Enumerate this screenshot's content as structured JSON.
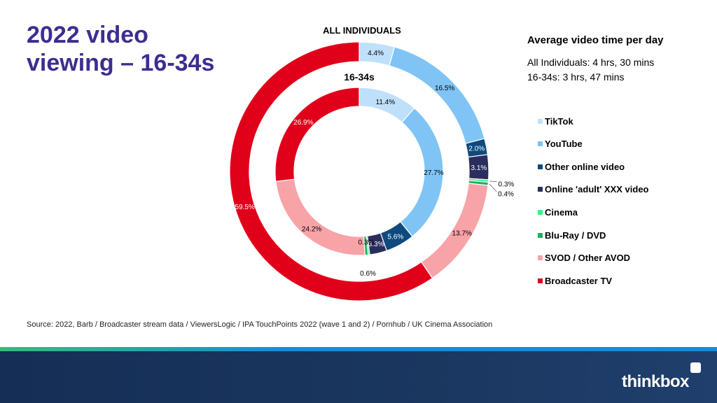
{
  "page": {
    "title": "2022 video viewing – 16-34s",
    "source": "Source: 2022, Barb / Broadcaster stream data / ViewersLogic / IPA TouchPoints 2022 (wave 1 and 2) / Pornhub / UK Cinema Association",
    "brand": "thinkbox"
  },
  "summary": {
    "title": "Average video time per day",
    "all_individuals": "All Individuals: 4 hrs, 30 mins",
    "age_16_34": "16-34s: 3 hrs, 47 mins"
  },
  "colors": {
    "title": "#3c2e91",
    "band_blue": "#1a8ad4",
    "band_green": "#3cb878",
    "footer": "#1a3760"
  },
  "chart_data": {
    "type": "donut",
    "rings": [
      {
        "name": "ALL INDIVIDUALS",
        "values": [
          4.4,
          16.5,
          2.0,
          3.1,
          0.3,
          0.4,
          13.7,
          59.5
        ],
        "labels": [
          "4.4%",
          "16.5%",
          "2.0%",
          "3.1%",
          "0.3%",
          "0.4%",
          "13.7%",
          "59.5%"
        ]
      },
      {
        "name": "16-34s",
        "values": [
          11.4,
          27.7,
          5.6,
          3.3,
          0.3,
          0.6,
          24.2,
          26.9
        ],
        "labels": [
          "11.4%",
          "27.7%",
          "5.6%",
          "3.3%",
          "0.3%",
          "0.6%",
          "24.2%",
          "26.9%"
        ]
      }
    ],
    "categories": [
      "TikTok",
      "YouTube",
      "Other online video",
      "Online 'adult' XXX video",
      "Cinema",
      "Blu-Ray / DVD",
      "SVOD / Other AVOD",
      "Broadcaster TV"
    ],
    "colors": [
      "#bfe0fa",
      "#7fc4f5",
      "#0e4a7e",
      "#2a2d5e",
      "#3df08a",
      "#20b05a",
      "#f7a3a8",
      "#e0001a"
    ],
    "legend_position": "right"
  }
}
